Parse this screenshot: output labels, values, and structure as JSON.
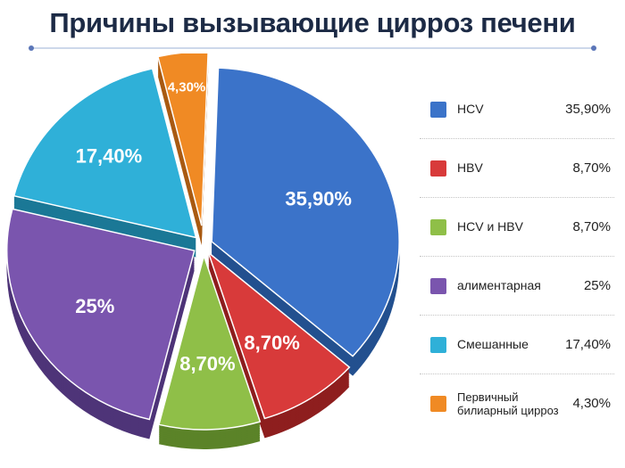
{
  "chart_data": {
    "type": "pie",
    "title": "Причины вызывающие цирроз печени",
    "slices": [
      {
        "name": "HCV",
        "value": 35.9,
        "label": "35,90%",
        "color": "#3b73c9",
        "side": "#23508f"
      },
      {
        "name": "HBV",
        "value": 8.7,
        "label": "8,70%",
        "color": "#d83a3a",
        "side": "#8e1e1e"
      },
      {
        "name": "HCV и HBV",
        "value": 8.7,
        "label": "8,70%",
        "color": "#8fbf48",
        "side": "#5b8328"
      },
      {
        "name": "алиментарная",
        "value": 25,
        "label": "25%",
        "color": "#7a55ae",
        "side": "#4e3478"
      },
      {
        "name": "Смешанные",
        "value": 17.4,
        "label": "17,40%",
        "color": "#2fb0d8",
        "side": "#1b7896"
      },
      {
        "name": "Первичный билиарный цирроз",
        "value": 4.3,
        "label": "4,30%",
        "color": "#f08a24",
        "side": "#a95a12"
      }
    ],
    "legend_position": "right"
  },
  "legend": [
    {
      "label": "HCV",
      "value": "35,90%"
    },
    {
      "label": "HBV",
      "value": "8,70%"
    },
    {
      "label": "HCV и HBV",
      "value": "8,70%"
    },
    {
      "label": "алиментарная",
      "value": "25%"
    },
    {
      "label": "Смешанные",
      "value": "17,40%"
    },
    {
      "label": "Первичный билиарный цирроз",
      "value": "4,30%"
    }
  ]
}
